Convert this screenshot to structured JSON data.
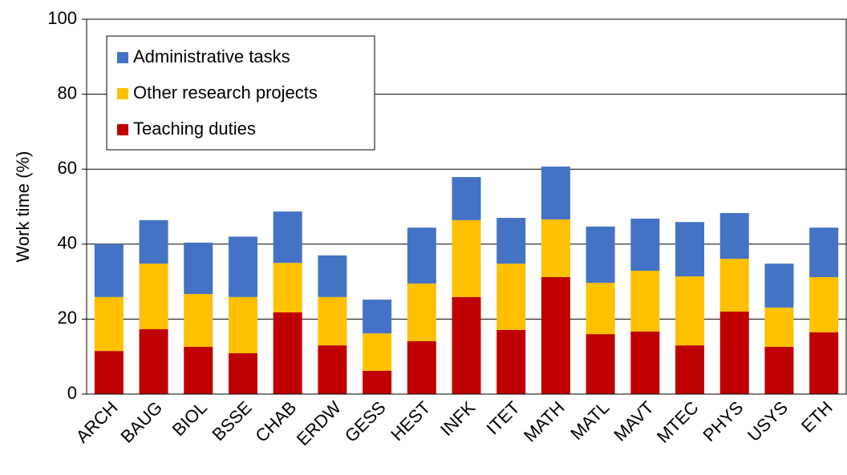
{
  "chart_data": {
    "type": "stacked_bar",
    "y_label": "Work time (%)",
    "categories": [
      "ARCH",
      "BAUG",
      "BIOL",
      "BSSE",
      "CHAB",
      "ERDW",
      "GESS",
      "HEST",
      "INFK",
      "ITET",
      "MATH",
      "MATL",
      "MAVT",
      "MTEC",
      "PHYS",
      "USYS",
      "ETH"
    ],
    "series": [
      {
        "name": "Teaching duties",
        "color": "#c00000",
        "values": [
          11.5,
          17.3,
          12.6,
          10.9,
          21.8,
          13.0,
          6.2,
          14.1,
          25.9,
          17.1,
          31.2,
          16.0,
          16.7,
          13.0,
          22.0,
          12.6,
          16.5
        ]
      },
      {
        "name": "Other research projects",
        "color": "#ffc000",
        "values": [
          14.4,
          17.5,
          14.1,
          15.0,
          13.2,
          12.9,
          10.0,
          15.4,
          20.5,
          17.7,
          15.4,
          13.7,
          16.2,
          18.4,
          14.1,
          10.5,
          14.7
        ]
      },
      {
        "name": "Administrative tasks",
        "color": "#4472c4",
        "values": [
          14.1,
          11.6,
          13.7,
          16.1,
          13.7,
          11.1,
          9.0,
          14.9,
          11.5,
          12.2,
          14.1,
          15.0,
          13.9,
          14.5,
          12.2,
          11.7,
          13.2
        ]
      }
    ],
    "ylim": [
      0,
      100
    ],
    "yticks": [
      0,
      20,
      40,
      60,
      80,
      100
    ],
    "grid": true,
    "legend": "upper left"
  }
}
